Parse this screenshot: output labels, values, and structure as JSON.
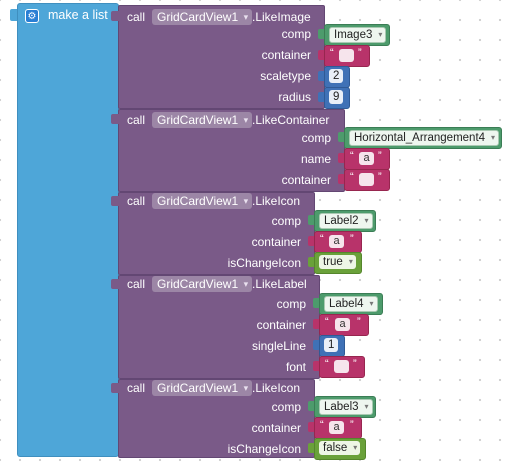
{
  "list_block": {
    "title": "make a list",
    "icon": "gear-icon"
  },
  "blocks": [
    {
      "call": "call",
      "component": "GridCardView1",
      "method": ".LikeImage",
      "params": [
        {
          "name": "comp",
          "type": "component",
          "value": "Image3"
        },
        {
          "name": "container",
          "type": "text",
          "value": ""
        },
        {
          "name": "scaletype",
          "type": "number",
          "value": "2"
        },
        {
          "name": "radius",
          "type": "number",
          "value": "9"
        }
      ]
    },
    {
      "call": "call",
      "component": "GridCardView1",
      "method": ".LikeContainer",
      "params": [
        {
          "name": "comp",
          "type": "component",
          "value": "Horizontal_Arrangement4"
        },
        {
          "name": "name",
          "type": "text",
          "value": "a"
        },
        {
          "name": "container",
          "type": "text",
          "value": ""
        }
      ]
    },
    {
      "call": "call",
      "component": "GridCardView1",
      "method": ".LikeIcon",
      "params": [
        {
          "name": "comp",
          "type": "component",
          "value": "Label2"
        },
        {
          "name": "container",
          "type": "text",
          "value": "a"
        },
        {
          "name": "isChangeIcon",
          "type": "boolean",
          "value": "true"
        }
      ]
    },
    {
      "call": "call",
      "component": "GridCardView1",
      "method": ".LikeLabel",
      "params": [
        {
          "name": "comp",
          "type": "component",
          "value": "Label4"
        },
        {
          "name": "container",
          "type": "text",
          "value": "a"
        },
        {
          "name": "singleLine",
          "type": "number",
          "value": "1"
        },
        {
          "name": "font",
          "type": "text",
          "value": ""
        }
      ]
    },
    {
      "call": "call",
      "component": "GridCardView1",
      "method": ".LikeIcon",
      "params": [
        {
          "name": "comp",
          "type": "component",
          "value": "Label3"
        },
        {
          "name": "container",
          "type": "text",
          "value": "a"
        },
        {
          "name": "isChangeIcon",
          "type": "boolean",
          "value": "false"
        }
      ]
    }
  ],
  "colors": {
    "list": "#4ea6d8",
    "procedure": "#7a5a88",
    "component": "#4d9b6c",
    "text": "#b8336a",
    "number": "#3f71b6",
    "boolean": "#6aa13a"
  }
}
